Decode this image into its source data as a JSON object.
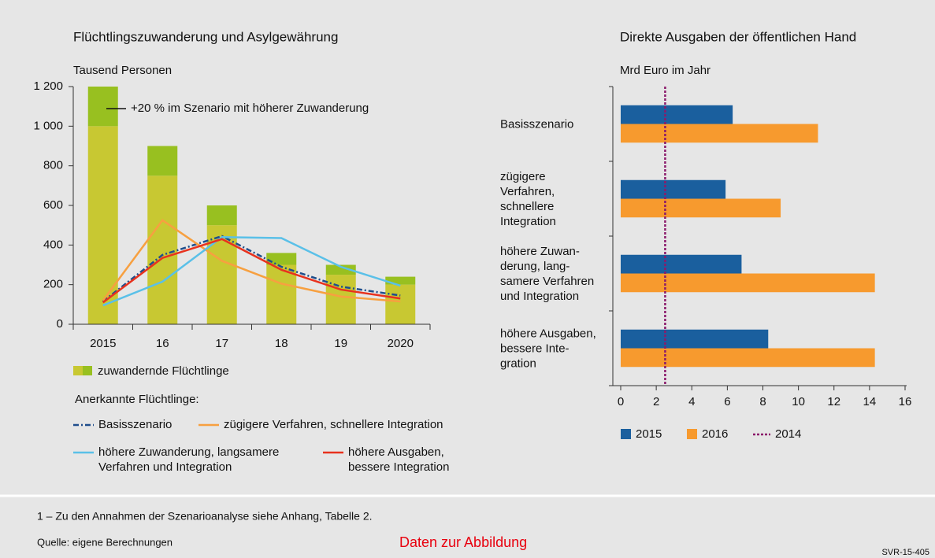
{
  "chart_data": [
    {
      "type": "bar",
      "title": "Flüchtlingszuwanderung und Asylgewährung",
      "y_label": "Tausend Personen",
      "annotation": "+20 % im Szenario mit höherer Zuwanderung",
      "categories": [
        "2015",
        "16",
        "17",
        "18",
        "19",
        "2020"
      ],
      "bars": {
        "name": "zuwandernde Flüchtlinge",
        "segments": [
          {
            "color": "#c8c832",
            "values": [
              1000,
              750,
              500,
              300,
              250,
              200
            ]
          },
          {
            "color": "#98c020",
            "values": [
              200,
              150,
              100,
              60,
              50,
              40
            ]
          }
        ]
      },
      "legend_title": "Anerkannte Flüchtlinge:",
      "series": [
        {
          "name": "Basisszenario",
          "color": "#1f4e8c",
          "dash": "7 3 2 3",
          "values": [
            115,
            350,
            445,
            290,
            190,
            145
          ]
        },
        {
          "name": "zügigere Verfahren, schnellere Integration",
          "color": "#f7a040",
          "values": [
            120,
            525,
            320,
            205,
            140,
            115
          ]
        },
        {
          "name": "höhere Zuwanderung, langsamere\nVerfahren und Integration",
          "color": "#5ac0e8",
          "values": [
            95,
            215,
            440,
            435,
            290,
            195
          ]
        },
        {
          "name": "höhere Ausgaben,\nbessere Integration",
          "color": "#e8321e",
          "values": [
            110,
            335,
            430,
            275,
            175,
            130
          ]
        }
      ],
      "ylim": [
        0,
        1200
      ],
      "yticks": [
        0,
        200,
        400,
        600,
        800,
        {
          "value": 1000,
          "label": "1 000"
        },
        {
          "value": 1200,
          "label": "1 200"
        }
      ]
    },
    {
      "type": "barh",
      "title": "Direkte Ausgaben der öffentlichen Hand",
      "x_label": "Mrd Euro im Jahr",
      "categories": [
        "Basisszenario",
        "zügigere\nVerfahren,\nschnellere\nIntegration",
        "höhere Zuwan-\nderung, lang-\nsamere Verfahren\nund Integration",
        "höhere Ausgaben,\nbessere Inte-\ngration"
      ],
      "series": [
        {
          "name": "2015",
          "color": "#1a5f9e",
          "values": [
            6.3,
            5.9,
            6.8,
            8.3
          ]
        },
        {
          "name": "2016",
          "color": "#f79a2e",
          "values": [
            11.1,
            9.0,
            14.3,
            14.3
          ]
        }
      ],
      "reference": {
        "name": "2014",
        "color": "#8b1a6b",
        "value": 2.5
      },
      "xlim": [
        0,
        16
      ],
      "xticks": [
        0,
        2,
        4,
        6,
        8,
        10,
        12,
        14,
        16
      ]
    }
  ],
  "footnote": "1 – Zu den Annahmen der Szenarioanalyse siehe Anhang, Tabelle 2.",
  "source": "Quelle: eigene Berechnungen",
  "data_link": "Daten zur Abbildung",
  "code": "SVR-15-405"
}
